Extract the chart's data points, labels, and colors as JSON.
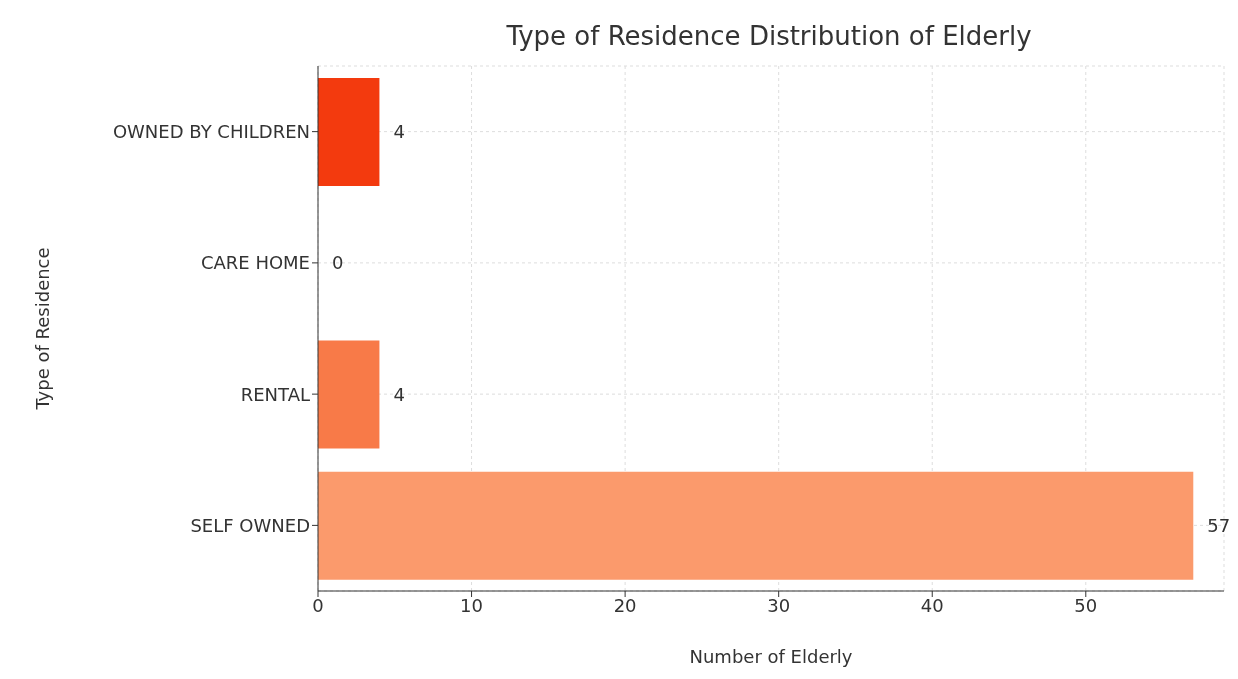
{
  "chart_data": {
    "type": "bar",
    "orientation": "horizontal",
    "title": "Type of Residence Distribution of Elderly",
    "xlabel": "Number of Elderly",
    "ylabel": "Type of Residence",
    "categories": [
      "OWNED BY CHILDREN",
      "CARE HOME",
      "RENTAL",
      "SELF OWNED"
    ],
    "values": [
      4,
      0,
      4,
      57
    ],
    "colors": [
      "#f33a0e",
      "#f65a2c",
      "#f87a48",
      "#fb9a6c"
    ],
    "xlim": [
      0,
      59
    ],
    "xticks": [
      0,
      10,
      20,
      30,
      40,
      50
    ],
    "grid": true,
    "data_labels": true
  }
}
